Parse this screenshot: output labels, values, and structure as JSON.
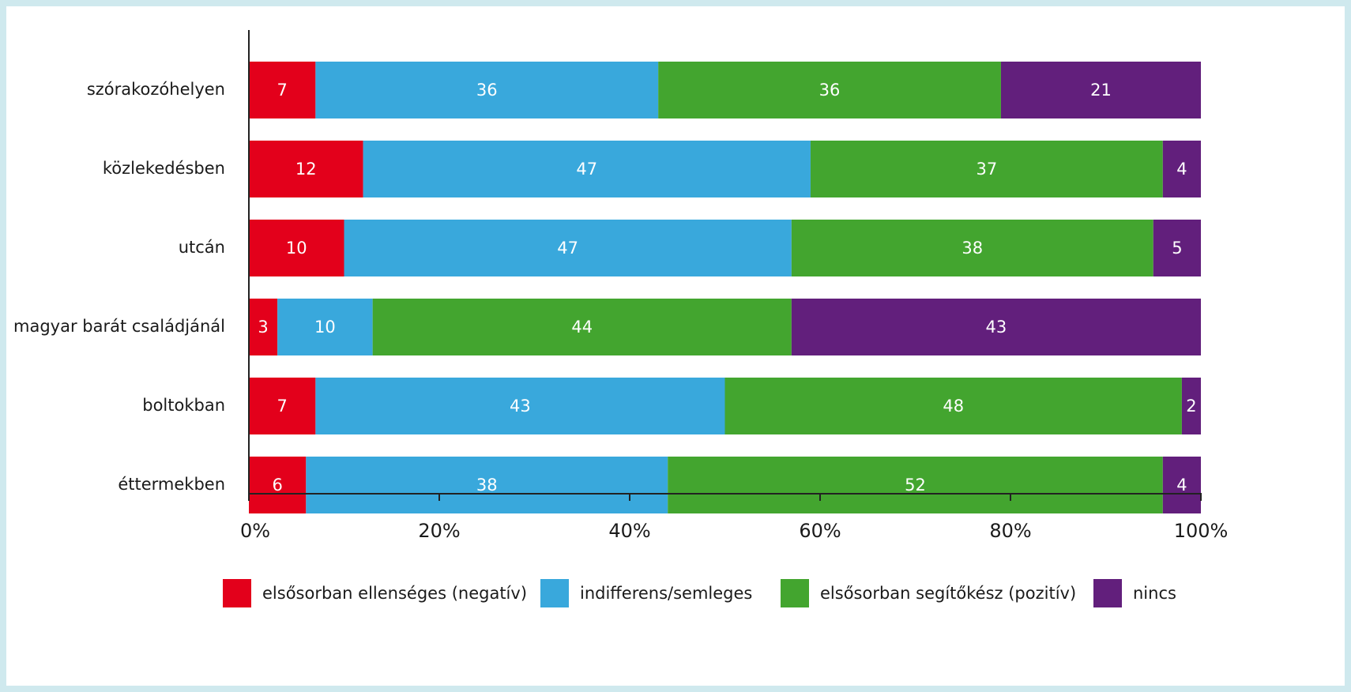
{
  "chart_data": {
    "type": "bar",
    "orientation": "horizontal",
    "stacked": true,
    "categories": [
      "szórakozóhelyen",
      "közlekedésben",
      "utcán",
      "magyar barát családjánál",
      "boltokban",
      "éttermekben"
    ],
    "series": [
      {
        "name": "elsősorban ellenséges (negatív)",
        "color": "#e3001b",
        "values": [
          7,
          12,
          10,
          3,
          7,
          6
        ]
      },
      {
        "name": "indifferens/semleges",
        "color": "#39a8dc",
        "values": [
          36,
          47,
          47,
          10,
          43,
          38
        ]
      },
      {
        "name": "elsősorban segítőkész (pozitív)",
        "color": "#43a52f",
        "values": [
          36,
          37,
          38,
          44,
          48,
          52
        ]
      },
      {
        "name": "nincs",
        "color": "#621f7c",
        "values": [
          21,
          4,
          5,
          43,
          2,
          4
        ]
      }
    ],
    "xlim": [
      0,
      100
    ],
    "xticks": [
      "0%",
      "20%",
      "40%",
      "60%",
      "80%",
      "100%"
    ],
    "grid": false,
    "legend_position": "bottom"
  }
}
